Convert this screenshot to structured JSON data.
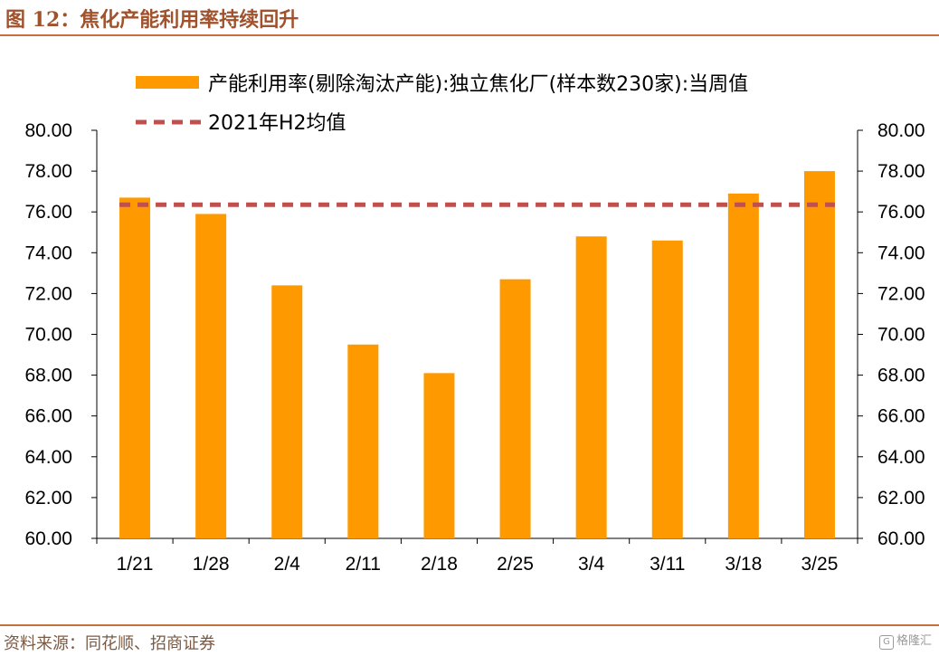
{
  "header": {
    "figure_title": "图 12：焦化产能利用率持续回升"
  },
  "footer": {
    "source": "资料来源：同花顺、招商证券",
    "watermark": "格隆汇"
  },
  "colors": {
    "bar": "#FF9900",
    "reference_line": "#C0504D",
    "rule": "#C8703A"
  },
  "chart_data": {
    "type": "bar",
    "categories": [
      "1/21",
      "1/28",
      "2/4",
      "2/11",
      "2/18",
      "2/25",
      "3/4",
      "3/11",
      "3/18",
      "3/25"
    ],
    "series": [
      {
        "name": "产能利用率(剔除淘汰产能):独立焦化厂(样本数230家):当周值",
        "values": [
          76.7,
          75.9,
          72.4,
          69.5,
          68.1,
          72.7,
          74.8,
          74.6,
          76.9,
          78.0
        ]
      }
    ],
    "reference_lines": [
      {
        "name": "2021年H2均值",
        "value": 76.35,
        "style": "dashed"
      }
    ],
    "yticks": [
      "60.00",
      "62.00",
      "64.00",
      "66.00",
      "68.00",
      "70.00",
      "72.00",
      "74.00",
      "76.00",
      "78.00",
      "80.00"
    ],
    "ylim": [
      60,
      80
    ],
    "y2ticks": [
      "60.00",
      "62.00",
      "64.00",
      "66.00",
      "68.00",
      "70.00",
      "72.00",
      "74.00",
      "76.00",
      "78.00",
      "80.00"
    ],
    "legend_position": "top",
    "grid": false
  }
}
